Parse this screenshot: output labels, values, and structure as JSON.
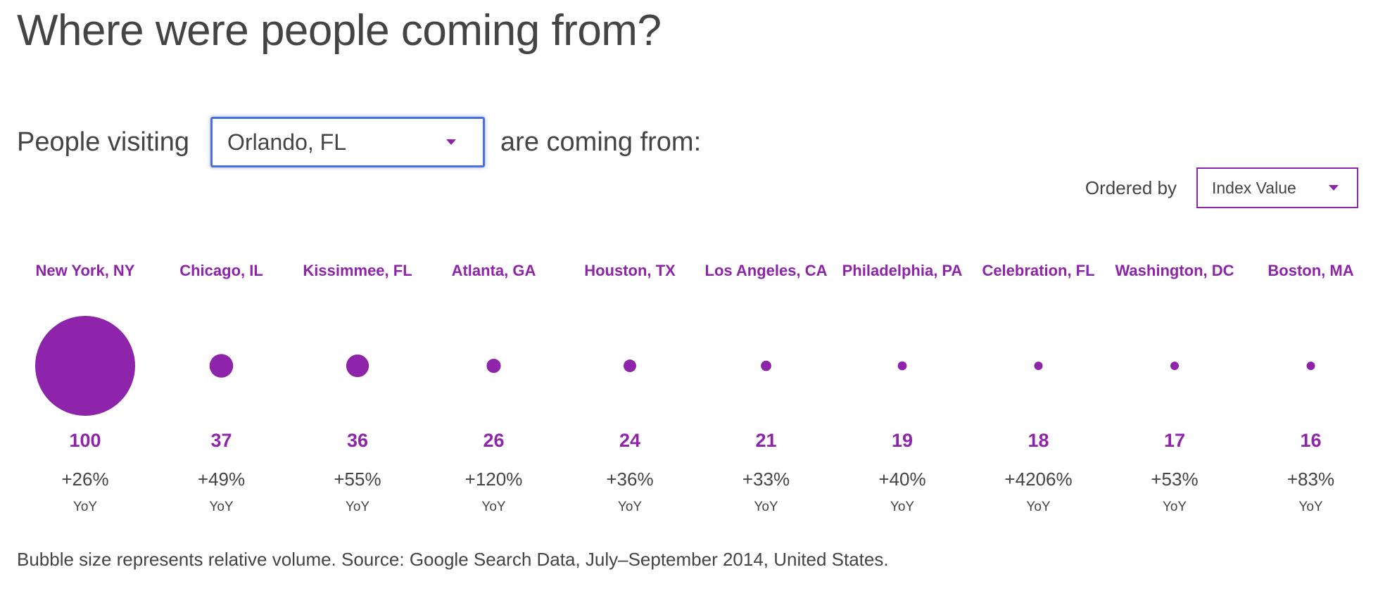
{
  "page": {
    "title": "Where were people coming from?"
  },
  "visit": {
    "prefix": "People visiting",
    "selected_city": "Orlando, FL",
    "suffix": "are coming from:"
  },
  "ordering": {
    "label": "Ordered by",
    "selected": "Index Value"
  },
  "colors": {
    "accent": "#8e24aa",
    "bubble": "#8e24aa",
    "text": "#444444",
    "focus": "#4a6fe0"
  },
  "chart_data": {
    "type": "bubble",
    "size_encodes": "index value",
    "points": [
      {
        "city": "New York, NY",
        "value": 100,
        "change": "+26%",
        "change_unit": "YoY"
      },
      {
        "city": "Chicago, IL",
        "value": 37,
        "change": "+49%",
        "change_unit": "YoY"
      },
      {
        "city": "Kissimmee, FL",
        "value": 36,
        "change": "+55%",
        "change_unit": "YoY"
      },
      {
        "city": "Atlanta, GA",
        "value": 26,
        "change": "+120%",
        "change_unit": "YoY"
      },
      {
        "city": "Houston, TX",
        "value": 24,
        "change": "+36%",
        "change_unit": "YoY"
      },
      {
        "city": "Los Angeles, CA",
        "value": 21,
        "change": "+33%",
        "change_unit": "YoY"
      },
      {
        "city": "Philadelphia, PA",
        "value": 19,
        "change": "+40%",
        "change_unit": "YoY"
      },
      {
        "city": "Celebration, FL",
        "value": 18,
        "change": "+4206%",
        "change_unit": "YoY"
      },
      {
        "city": "Washington, DC",
        "value": 17,
        "change": "+53%",
        "change_unit": "YoY"
      },
      {
        "city": "Boston, MA",
        "value": 16,
        "change": "+83%",
        "change_unit": "YoY"
      }
    ]
  },
  "footnote": "Bubble size represents relative volume. Source: Google Search Data, July–September 2014, United States."
}
